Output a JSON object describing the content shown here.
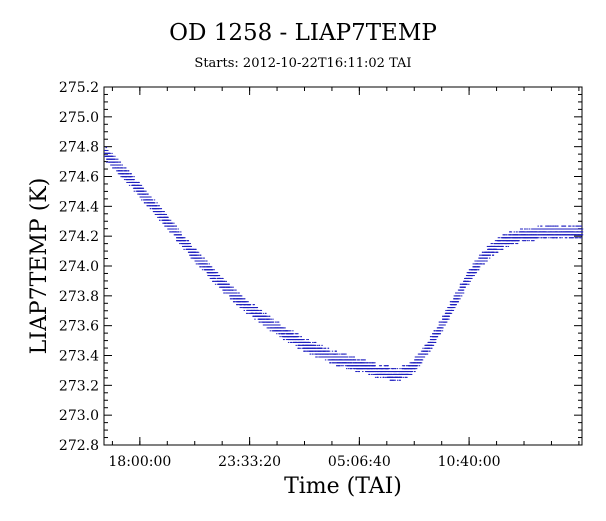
{
  "chart_data": {
    "type": "scatter",
    "title": "OD 1258 - LIAP7TEMP",
    "subtitle": "Starts: 2012-10-22T16:11:02 TAI",
    "xlabel": "Time (TAI)",
    "ylabel": "LIAP7TEMP (K)",
    "x_unit": "hours since 2012-10-22T16:11:02 TAI",
    "xlim": [
      0,
      24.2
    ],
    "ylim": [
      272.8,
      275.2
    ],
    "x_ticks": [
      {
        "value": 1.815,
        "label": "18:00:00"
      },
      {
        "value": 7.372,
        "label": "23:33:20"
      },
      {
        "value": 12.928,
        "label": "05:06:40"
      },
      {
        "value": 18.483,
        "label": "10:40:00"
      }
    ],
    "y_ticks": [
      {
        "value": 272.8,
        "label": "272.8"
      },
      {
        "value": 273.0,
        "label": "273.0"
      },
      {
        "value": 273.2,
        "label": "273.2"
      },
      {
        "value": 273.4,
        "label": "273.4"
      },
      {
        "value": 273.6,
        "label": "273.6"
      },
      {
        "value": 273.8,
        "label": "273.8"
      },
      {
        "value": 274.0,
        "label": "274.0"
      },
      {
        "value": 274.2,
        "label": "274.2"
      },
      {
        "value": 274.4,
        "label": "274.4"
      },
      {
        "value": 274.6,
        "label": "274.6"
      },
      {
        "value": 274.8,
        "label": "274.8"
      },
      {
        "value": 275.0,
        "label": "275.0"
      },
      {
        "value": 275.2,
        "label": "275.2"
      }
    ],
    "grid": false,
    "series": [
      {
        "name": "",
        "color": "#2020c0",
        "x": [
          0.0,
          0.5,
          1.0,
          1.5,
          2.0,
          2.5,
          3.0,
          3.5,
          4.0,
          4.5,
          5.0,
          5.5,
          6.0,
          6.5,
          7.0,
          7.5,
          8.0,
          8.5,
          9.0,
          9.5,
          10.0,
          10.5,
          11.0,
          11.5,
          12.0,
          12.5,
          13.0,
          13.5,
          14.0,
          14.5,
          15.0,
          15.5,
          16.0,
          16.5,
          17.0,
          17.5,
          18.0,
          18.5,
          19.0,
          19.5,
          20.0,
          20.5,
          21.0,
          21.5,
          22.0,
          22.5,
          23.0,
          23.5,
          24.0
        ],
        "y": [
          274.76,
          274.69,
          274.62,
          274.55,
          274.47,
          274.4,
          274.32,
          274.24,
          274.16,
          274.08,
          274.01,
          273.94,
          273.87,
          273.81,
          273.75,
          273.7,
          273.65,
          273.6,
          273.56,
          273.52,
          273.48,
          273.45,
          273.42,
          273.39,
          273.37,
          273.35,
          273.33,
          273.31,
          273.29,
          273.28,
          273.28,
          273.31,
          273.38,
          273.48,
          273.59,
          273.71,
          273.83,
          273.94,
          274.03,
          274.1,
          274.15,
          274.18,
          274.2,
          274.21,
          274.22,
          274.22,
          274.22,
          274.22,
          274.22
        ]
      }
    ]
  }
}
